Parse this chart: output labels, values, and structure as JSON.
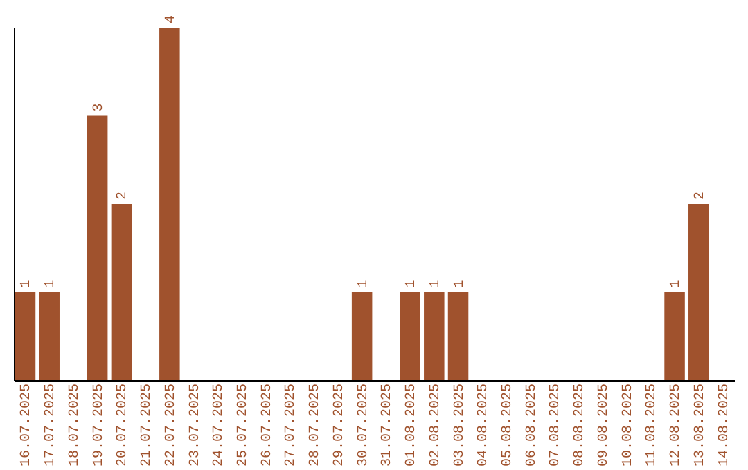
{
  "chart_data": {
    "type": "bar",
    "categories": [
      "16.07.2025",
      "17.07.2025",
      "18.07.2025",
      "19.07.2025",
      "20.07.2025",
      "21.07.2025",
      "22.07.2025",
      "23.07.2025",
      "24.07.2025",
      "25.07.2025",
      "26.07.2025",
      "27.07.2025",
      "28.07.2025",
      "29.07.2025",
      "30.07.2025",
      "31.07.2025",
      "01.08.2025",
      "02.08.2025",
      "03.08.2025",
      "04.08.2025",
      "05.08.2025",
      "06.08.2025",
      "07.08.2025",
      "08.08.2025",
      "09.08.2025",
      "10.08.2025",
      "11.08.2025",
      "12.08.2025",
      "13.08.2025",
      "14.08.2025"
    ],
    "values": [
      1,
      1,
      0,
      3,
      2,
      0,
      4,
      0,
      0,
      0,
      0,
      0,
      0,
      0,
      1,
      0,
      1,
      1,
      1,
      0,
      0,
      0,
      0,
      0,
      0,
      0,
      0,
      1,
      2,
      0
    ],
    "value_labels": [
      "1",
      "1",
      null,
      "3",
      "2",
      null,
      "4",
      null,
      null,
      null,
      null,
      null,
      null,
      null,
      "1",
      null,
      "1",
      "1",
      "1",
      null,
      null,
      null,
      null,
      null,
      null,
      null,
      null,
      "1",
      "2",
      null
    ],
    "color": "#a0522d",
    "ylim": [
      0,
      4
    ],
    "tick_labels": "x",
    "grid": false
  }
}
